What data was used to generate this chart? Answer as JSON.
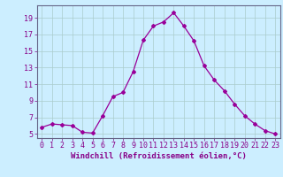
{
  "x": [
    0,
    1,
    2,
    3,
    4,
    5,
    6,
    7,
    8,
    9,
    10,
    11,
    12,
    13,
    14,
    15,
    16,
    17,
    18,
    19,
    20,
    21,
    22,
    23
  ],
  "y": [
    5.8,
    6.2,
    6.1,
    6.0,
    5.2,
    5.1,
    7.2,
    9.5,
    10.0,
    12.5,
    16.3,
    18.0,
    18.5,
    19.6,
    18.0,
    16.2,
    13.2,
    11.5,
    10.2,
    8.6,
    7.2,
    6.2,
    5.4,
    5.0
  ],
  "line_color": "#990099",
  "marker": "D",
  "marker_size": 2,
  "bg_color": "#cceeff",
  "grid_color": "#aacccc",
  "xlabel": "Windchill (Refroidissement éolien,°C)",
  "xlabel_fontsize": 6.5,
  "ylabel_ticks": [
    5,
    7,
    9,
    11,
    13,
    15,
    17,
    19
  ],
  "ylim": [
    4.5,
    20.5
  ],
  "xlim": [
    -0.5,
    23.5
  ],
  "tick_fontsize": 6,
  "tick_color": "#880088",
  "spine_color": "#666688"
}
